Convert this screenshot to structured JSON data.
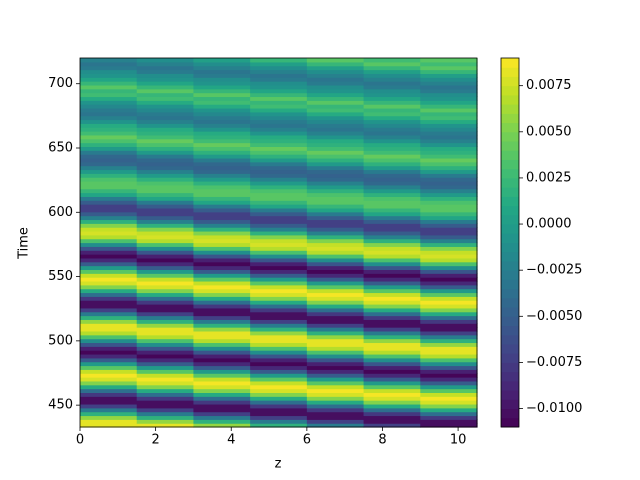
{
  "chart_data": {
    "type": "heatmap",
    "xlabel": "z",
    "ylabel": "Time",
    "colormap": "viridis",
    "xlim": [
      0,
      10.5
    ],
    "ylim": [
      433,
      720
    ],
    "xticks": [
      0,
      2,
      4,
      6,
      8,
      10
    ],
    "yticks": [
      450,
      500,
      550,
      600,
      650,
      700
    ],
    "colorbar": {
      "lim": [
        -0.011,
        0.009
      ],
      "levels": 40,
      "ticks": [
        {
          "value": -0.01,
          "label": "−0.0100"
        },
        {
          "value": -0.0075,
          "label": "−0.0075"
        },
        {
          "value": -0.005,
          "label": "−0.0050"
        },
        {
          "value": -0.0025,
          "label": "−0.0025"
        },
        {
          "value": 0,
          "label": "0.0000"
        },
        {
          "value": 0.0025,
          "label": "0.0025"
        },
        {
          "value": 0.005,
          "label": "0.0050"
        },
        {
          "value": 0.0075,
          "label": "0.0075"
        }
      ]
    },
    "values": [
      [
        0.0084,
        0.008,
        0.0057,
        0.0019,
        -0.0028,
        -0.0074,
        -0.01
      ],
      [
        0.008,
        0.0057,
        0.0019,
        -0.0028,
        -0.0074,
        -0.01,
        -0.0103
      ],
      [
        0.0057,
        0.0019,
        -0.0028,
        -0.0074,
        -0.01,
        -0.0103,
        -0.0079
      ],
      [
        0.0019,
        -0.0028,
        -0.0074,
        -0.01,
        -0.0103,
        -0.0079,
        -0.0037
      ],
      [
        -0.0028,
        -0.0074,
        -0.01,
        -0.0103,
        -0.0079,
        -0.0037,
        0.0012
      ],
      [
        -0.0074,
        -0.01,
        -0.0103,
        -0.0079,
        -0.0037,
        0.0012,
        0.0051
      ],
      [
        -0.01,
        -0.0103,
        -0.0079,
        -0.0037,
        0.0012,
        0.0051,
        0.0078
      ],
      [
        -0.0103,
        -0.0079,
        -0.0037,
        0.0012,
        0.0051,
        0.0078,
        0.0085
      ],
      [
        -0.0079,
        -0.0037,
        0.0012,
        0.0051,
        0.0078,
        0.0085,
        0.0071
      ],
      [
        -0.0037,
        0.0012,
        0.0051,
        0.0078,
        0.0085,
        0.0071,
        0.0039
      ],
      [
        0.0012,
        0.0051,
        0.0078,
        0.0085,
        0.0071,
        0.0039,
        -0.0002
      ],
      [
        0.0051,
        0.0078,
        0.0085,
        0.0071,
        0.0039,
        -0.0002,
        -0.0053
      ],
      [
        0.0078,
        0.0085,
        0.0071,
        0.0039,
        -0.0002,
        -0.0053,
        -0.009
      ],
      [
        0.0085,
        0.0071,
        0.0039,
        -0.0002,
        -0.0053,
        -0.009,
        -0.0105
      ],
      [
        0.0071,
        0.0039,
        -0.0002,
        -0.0053,
        -0.009,
        -0.0105,
        -0.0094
      ],
      [
        0.0039,
        -0.0002,
        -0.0053,
        -0.009,
        -0.0105,
        -0.0094,
        -0.006
      ],
      [
        -0.0002,
        -0.0053,
        -0.009,
        -0.0105,
        -0.0094,
        -0.006,
        -0.0011
      ],
      [
        -0.0053,
        -0.009,
        -0.0105,
        -0.0094,
        -0.006,
        -0.0011,
        0.0033
      ],
      [
        -0.009,
        -0.0105,
        -0.0094,
        -0.006,
        -0.0011,
        0.0033,
        0.0067
      ],
      [
        -0.0105,
        -0.0094,
        -0.006,
        -0.0011,
        0.0033,
        0.0067,
        0.0084
      ],
      [
        -0.0094,
        -0.006,
        -0.0011,
        0.0033,
        0.0067,
        0.0084,
        0.008
      ],
      [
        -0.006,
        -0.0011,
        0.0033,
        0.0067,
        0.0084,
        0.008,
        0.0057
      ],
      [
        -0.0011,
        0.0033,
        0.0067,
        0.0084,
        0.008,
        0.0057,
        0.0019
      ],
      [
        0.0033,
        0.0067,
        0.0084,
        0.008,
        0.0057,
        0.0019,
        -0.0028
      ],
      [
        0.0067,
        0.0084,
        0.008,
        0.0057,
        0.0019,
        -0.0028,
        -0.0074
      ],
      [
        0.0084,
        0.008,
        0.0057,
        0.0019,
        -0.0028,
        -0.0074,
        -0.01
      ],
      [
        0.008,
        0.0057,
        0.0019,
        -0.0028,
        -0.0074,
        -0.01,
        -0.0103
      ],
      [
        0.0057,
        0.0019,
        -0.0028,
        -0.0074,
        -0.01,
        -0.0103,
        -0.0079
      ],
      [
        0.0019,
        -0.0028,
        -0.0074,
        -0.01,
        -0.0103,
        -0.0079,
        -0.0037
      ],
      [
        -0.0028,
        -0.0074,
        -0.01,
        -0.0103,
        -0.0079,
        -0.0037,
        0.0012
      ],
      [
        -0.0074,
        -0.01,
        -0.0103,
        -0.0079,
        -0.0037,
        0.0012,
        0.0051
      ],
      [
        -0.01,
        -0.0103,
        -0.0079,
        -0.0037,
        0.0012,
        0.0051,
        0.0078
      ],
      [
        -0.0103,
        -0.0079,
        -0.0037,
        0.0012,
        0.0051,
        0.0078,
        0.0085
      ],
      [
        -0.0079,
        -0.0037,
        0.0012,
        0.0051,
        0.0078,
        0.0085,
        0.0071
      ],
      [
        -0.0037,
        0.0012,
        0.0051,
        0.0078,
        0.0085,
        0.0071,
        0.0039
      ],
      [
        0.0012,
        0.0051,
        0.0078,
        0.0085,
        0.0071,
        0.0039,
        -0.0002
      ],
      [
        0.0051,
        0.0078,
        0.0085,
        0.0071,
        0.0039,
        -0.0002,
        -0.0053
      ],
      [
        0.0078,
        0.0085,
        0.0071,
        0.0039,
        -0.0002,
        -0.0053,
        -0.009
      ],
      [
        0.0085,
        0.0071,
        0.0039,
        -0.0002,
        -0.0053,
        -0.009,
        -0.0105
      ],
      [
        0.0071,
        0.0039,
        -0.0002,
        -0.0053,
        -0.009,
        -0.0105,
        -0.0094
      ],
      [
        0.0039,
        -0.0002,
        -0.0053,
        -0.009,
        -0.0105,
        -0.0094,
        -0.006
      ],
      [
        -0.0002,
        -0.0053,
        -0.009,
        -0.0105,
        -0.0094,
        -0.006,
        -0.0011
      ],
      [
        -0.0053,
        -0.009,
        -0.0105,
        -0.0094,
        -0.006,
        -0.0011,
        0.0033
      ],
      [
        -0.009,
        -0.0105,
        -0.0094,
        -0.006,
        -0.0011,
        0.0033,
        0.0067
      ],
      [
        -0.0105,
        -0.0094,
        -0.006,
        -0.0011,
        0.0033,
        0.0067,
        0.0076
      ],
      [
        -0.0094,
        -0.006,
        -0.0011,
        0.0033,
        0.0067,
        0.0076,
        0.0072
      ],
      [
        -0.006,
        -0.0011,
        0.0033,
        0.0067,
        0.0076,
        0.0072,
        0.0051
      ],
      [
        -0.0011,
        0.0033,
        0.0067,
        0.0076,
        0.0072,
        0.0051,
        0.0017
      ],
      [
        0.0033,
        0.0067,
        0.0076,
        0.0072,
        0.0051,
        0.0017,
        -0.0025
      ],
      [
        0.0067,
        0.0076,
        0.0072,
        0.0051,
        0.0017,
        -0.0025,
        -0.0052
      ],
      [
        0.0076,
        0.0072,
        0.0051,
        0.0017,
        -0.0025,
        -0.0052,
        -0.007
      ],
      [
        0.0072,
        0.0051,
        0.0017,
        -0.0025,
        -0.0052,
        -0.007,
        -0.0072
      ],
      [
        0.0051,
        0.0017,
        -0.0025,
        -0.0052,
        -0.007,
        -0.0072,
        -0.0055
      ],
      [
        0.0017,
        -0.0025,
        -0.0052,
        -0.007,
        -0.0072,
        -0.0055,
        -0.0026
      ],
      [
        -0.0025,
        -0.0052,
        -0.007,
        -0.0072,
        -0.0055,
        -0.0026,
        0.0008
      ],
      [
        -0.0052,
        -0.007,
        -0.0072,
        -0.0055,
        -0.0026,
        0.0008,
        0.0023
      ],
      [
        -0.007,
        -0.0072,
        -0.0055,
        -0.0026,
        0.0008,
        0.0023,
        0.0035
      ],
      [
        -0.0072,
        -0.0055,
        -0.0026,
        0.0008,
        0.0023,
        0.0035,
        0.0038
      ],
      [
        -0.0055,
        -0.0026,
        0.0008,
        0.0023,
        0.0035,
        0.0038,
        0.0032
      ],
      [
        -0.0026,
        0.0008,
        0.0023,
        0.0035,
        0.0038,
        0.0032,
        0.0018
      ],
      [
        0.0008,
        0.0023,
        0.0035,
        0.0038,
        0.0032,
        0.0018,
        -0.0001
      ],
      [
        0.0023,
        0.0035,
        0.0038,
        0.0032,
        0.0018,
        -0.0001,
        -0.0024
      ],
      [
        0.0035,
        0.0038,
        0.0032,
        0.0018,
        -0.0001,
        -0.0024,
        -0.0041
      ],
      [
        0.0038,
        0.0032,
        0.0018,
        -0.0001,
        -0.0024,
        -0.0041,
        -0.0047
      ],
      [
        0.0032,
        0.0018,
        -0.0001,
        -0.0024,
        -0.0041,
        -0.0047,
        -0.0042
      ],
      [
        0.0018,
        -0.0001,
        -0.0024,
        -0.0041,
        -0.0047,
        -0.0042,
        -0.0027
      ],
      [
        -0.0001,
        -0.0024,
        -0.0041,
        -0.0047,
        -0.0042,
        -0.0027,
        -0.0005
      ],
      [
        -0.0024,
        -0.0041,
        -0.0047,
        -0.0042,
        -0.0027,
        -0.0005,
        0.0015
      ],
      [
        -0.0041,
        -0.0047,
        -0.0042,
        -0.0027,
        -0.0005,
        0.0015,
        0.003
      ],
      [
        -0.0047,
        -0.0042,
        -0.0027,
        -0.0005,
        0.0015,
        0.003,
        0.004
      ],
      [
        -0.0042,
        -0.0027,
        -0.0005,
        0.0015,
        0.003,
        0.004,
        0.0025
      ],
      [
        -0.0027,
        -0.0005,
        0.0015,
        0.003,
        0.004,
        0.0025,
        0.0018
      ],
      [
        -0.0005,
        0.0015,
        0.003,
        0.004,
        0.0025,
        0.0018,
        0.0014
      ],
      [
        0.0015,
        0.003,
        0.004,
        0.0025,
        0.0018,
        0.0014,
        -0.0006
      ],
      [
        0.003,
        0.004,
        0.0025,
        0.0018,
        0.0014,
        -0.0006,
        -0.0022
      ],
      [
        0.004,
        0.0025,
        0.0018,
        0.0014,
        -0.0006,
        -0.0022,
        -0.0035
      ],
      [
        0.0025,
        0.0018,
        0.0014,
        -0.0006,
        -0.0022,
        -0.0035,
        -0.003
      ],
      [
        0.0018,
        0.0014,
        -0.0006,
        -0.0022,
        -0.0035,
        -0.003,
        -0.002
      ],
      [
        0.0014,
        -0.0006,
        -0.0022,
        -0.0035,
        -0.003,
        -0.002,
        -0.0008
      ],
      [
        -0.0006,
        -0.0022,
        -0.0035,
        -0.003,
        -0.002,
        -0.0008,
        0.0012
      ],
      [
        -0.0022,
        -0.0035,
        -0.003,
        -0.002,
        -0.0008,
        0.0012,
        0.0028
      ],
      [
        -0.0035,
        -0.003,
        -0.002,
        -0.0008,
        0.0012,
        0.0028,
        0.0024
      ],
      [
        -0.003,
        -0.002,
        -0.0008,
        0.0012,
        0.0028,
        0.0024,
        0.0036
      ],
      [
        -0.002,
        -0.0008,
        0.0012,
        0.0028,
        0.0024,
        0.0036,
        0.002
      ],
      [
        -0.0008,
        0.0012,
        0.0028,
        0.0024,
        0.0036,
        0.002,
        0.0009
      ],
      [
        0.0012,
        0.0028,
        0.0024,
        0.0036,
        0.002,
        0.0009,
        -0.0008
      ],
      [
        0.0028,
        0.0024,
        0.0036,
        0.002,
        0.0009,
        -0.0008,
        -0.0015
      ],
      [
        0.0024,
        0.0036,
        0.002,
        0.0009,
        -0.0008,
        -0.0015,
        -0.0028
      ],
      [
        0.0036,
        0.002,
        0.0009,
        -0.0008,
        -0.0015,
        -0.0028,
        -0.0032
      ],
      [
        0.002,
        0.0009,
        -0.0008,
        -0.0015,
        -0.0028,
        -0.0032,
        -0.0025
      ],
      [
        0.0009,
        -0.0008,
        -0.0015,
        -0.0028,
        -0.0032,
        -0.0025,
        -0.0012
      ],
      [
        -0.0008,
        -0.0015,
        -0.0028,
        -0.0032,
        -0.0025,
        -0.0012,
        0.0003
      ],
      [
        -0.0015,
        -0.0028,
        -0.0032,
        -0.0025,
        -0.0012,
        0.0003,
        0.0022
      ],
      [
        -0.0028,
        -0.0032,
        -0.0025,
        -0.0012,
        0.0003,
        0.0022,
        0.0035
      ],
      [
        -0.0032,
        -0.0025,
        -0.0012,
        0.0003,
        0.0022,
        0.0035,
        0.0028
      ],
      [
        -0.0025,
        -0.0012,
        0.0003,
        0.0022,
        0.0035,
        0.0028,
        0.0038
      ]
    ]
  }
}
